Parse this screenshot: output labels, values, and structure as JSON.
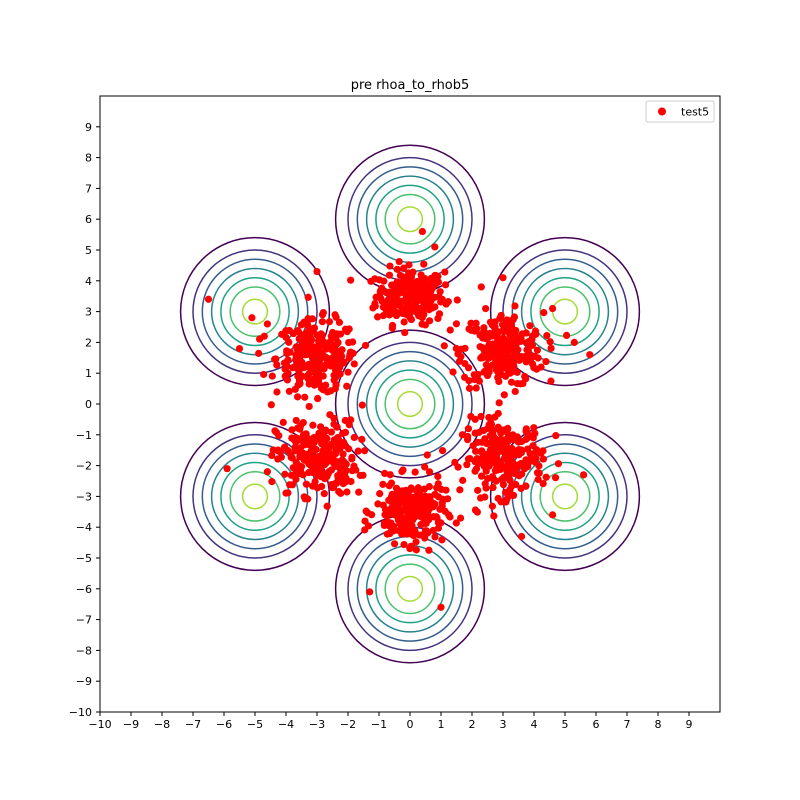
{
  "chart_data": {
    "type": "scatter",
    "title": "pre rhoa_to_rhob5",
    "xlabel": "",
    "ylabel": "",
    "xlim": [
      -10,
      10
    ],
    "ylim": [
      -10,
      10
    ],
    "xticks": [
      -10,
      -9,
      -8,
      -7,
      -6,
      -5,
      -4,
      -3,
      -2,
      -1,
      0,
      1,
      2,
      3,
      4,
      5,
      6,
      7,
      8,
      9
    ],
    "yticks": [
      -10,
      -9,
      -8,
      -7,
      -6,
      -5,
      -4,
      -3,
      -2,
      -1,
      0,
      1,
      2,
      3,
      4,
      5,
      6,
      7,
      8,
      9
    ],
    "grid": false,
    "legend": {
      "placement": "top-right",
      "entries": [
        "test5"
      ]
    },
    "series": [
      {
        "name": "test5",
        "color": "#ff0000",
        "clusters": [
          {
            "center": [
              0,
              3.5
            ],
            "sd": [
              0.55,
              0.45
            ],
            "count": 240
          },
          {
            "center": [
              -3,
              1.5
            ],
            "sd": [
              0.65,
              0.6
            ],
            "count": 240
          },
          {
            "center": [
              3,
              1.75
            ],
            "sd": [
              0.65,
              0.6
            ],
            "count": 240
          },
          {
            "center": [
              -3,
              -1.75
            ],
            "sd": [
              0.65,
              0.6
            ],
            "count": 240
          },
          {
            "center": [
              3,
              -1.75
            ],
            "sd": [
              0.65,
              0.6
            ],
            "count": 240
          },
          {
            "center": [
              0,
              -3.5
            ],
            "sd": [
              0.55,
              0.5
            ],
            "count": 240
          }
        ],
        "highlighted_points": [
          [
            -6.5,
            3.4
          ],
          [
            -5.1,
            2.8
          ],
          [
            -4.6,
            2.6
          ],
          [
            -5.5,
            1.8
          ],
          [
            -5.9,
            -2.1
          ],
          [
            -4.6,
            -2.2
          ],
          [
            4.6,
            -3.6
          ],
          [
            5.6,
            -2.3
          ],
          [
            5.3,
            2.0
          ],
          [
            5.8,
            1.6
          ],
          [
            4.6,
            3.1
          ],
          [
            -1.3,
            -6.1
          ],
          [
            1.0,
            -6.6
          ],
          [
            0.4,
            5.6
          ],
          [
            0.8,
            5.1
          ],
          [
            2.3,
            3.8
          ],
          [
            3.0,
            4.1
          ],
          [
            -3.0,
            4.3
          ],
          [
            -4.7,
            2.2
          ],
          [
            3.6,
            -4.3
          ]
        ]
      }
    ],
    "contours": {
      "centers": [
        [
          0,
          6
        ],
        [
          -5,
          3
        ],
        [
          5,
          3
        ],
        [
          0,
          0
        ],
        [
          -5,
          -3
        ],
        [
          5,
          -3
        ],
        [
          0,
          -6
        ]
      ],
      "radii": [
        0.4,
        0.8,
        1.1,
        1.4,
        1.7,
        2.0,
        2.4
      ],
      "colors": [
        "#a5db36",
        "#4ac16d",
        "#1fa187",
        "#26828e",
        "#365c8d",
        "#46337e",
        "#440154"
      ]
    }
  }
}
